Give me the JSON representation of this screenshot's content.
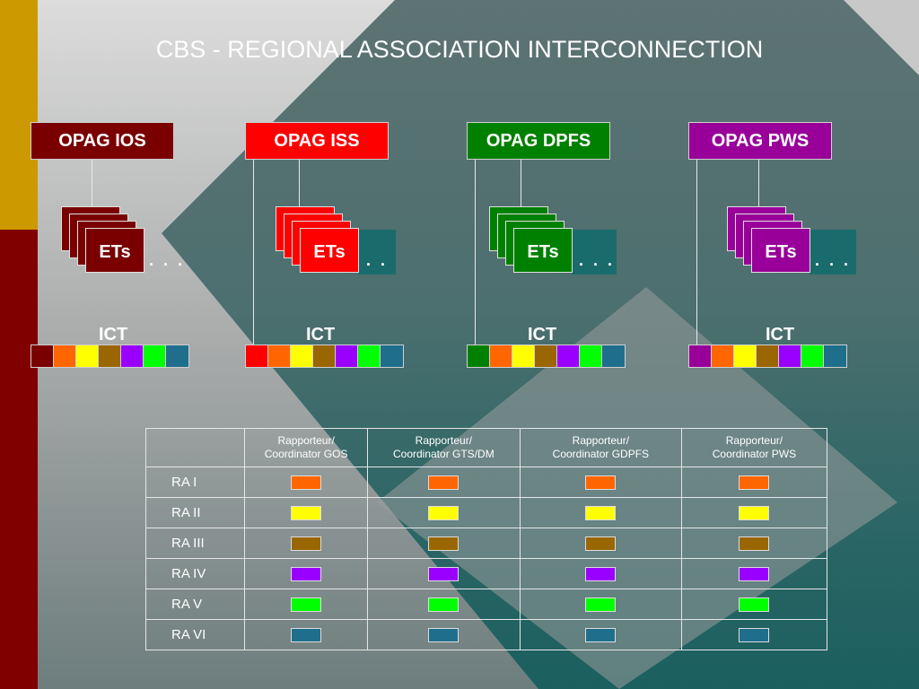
{
  "title": "CBS - REGIONAL ASSOCIATION INTERCONNECTION",
  "colors": {
    "ios": "#7a0000",
    "iss": "#ff0000",
    "dpfs": "#008000",
    "pws": "#990099",
    "ra1": "#ff6600",
    "ra2": "#ffff00",
    "ra3": "#996600",
    "ra4": "#9900ff",
    "ra5": "#00ff00",
    "ra6": "#1f6e8c",
    "left_gold": "#cc9900",
    "left_maroon": "#800000"
  },
  "groups": [
    {
      "opag": "OPAG IOS",
      "ets": "ETs",
      "dots": ". . .",
      "ict": "ICT",
      "color": "#7a0000",
      "ict_colors": [
        "#7a0000",
        "#ff6600",
        "#ffff00",
        "#996600",
        "#9900ff",
        "#00ff00",
        "#1f6e8c"
      ]
    },
    {
      "opag": "OPAG ISS",
      "ets": "ETs",
      "dots": ". .",
      "ict": "ICT",
      "color": "#ff0000",
      "ict_colors": [
        "#ff0000",
        "#ff6600",
        "#ffff00",
        "#996600",
        "#9900ff",
        "#00ff00",
        "#1f6e8c"
      ]
    },
    {
      "opag": "OPAG DPFS",
      "ets": "ETs",
      "dots": ". . .",
      "ict": "ICT",
      "color": "#008000",
      "ict_colors": [
        "#008000",
        "#ff6600",
        "#ffff00",
        "#996600",
        "#9900ff",
        "#00ff00",
        "#1f6e8c"
      ]
    },
    {
      "opag": "OPAG PWS",
      "ets": "ETs",
      "dots": ". . .",
      "ict": "ICT",
      "color": "#990099",
      "ict_colors": [
        "#990099",
        "#ff6600",
        "#ffff00",
        "#996600",
        "#9900ff",
        "#00ff00",
        "#1f6e8c"
      ]
    }
  ],
  "table": {
    "headers": [
      "Rapporteur/\nCoordinator GOS",
      "Rapporteur/\nCoordinator GTS/DM",
      "Rapporteur/\nCoordinator GDPFS",
      "Rapporteur/\nCoordinator PWS"
    ],
    "rows": [
      {
        "name": "RA I",
        "color": "#ff6600"
      },
      {
        "name": "RA II",
        "color": "#ffff00"
      },
      {
        "name": "RA III",
        "color": "#996600"
      },
      {
        "name": "RA IV",
        "color": "#9900ff"
      },
      {
        "name": "RA V",
        "color": "#00ff00"
      },
      {
        "name": "RA VI",
        "color": "#1f6e8c"
      }
    ]
  }
}
